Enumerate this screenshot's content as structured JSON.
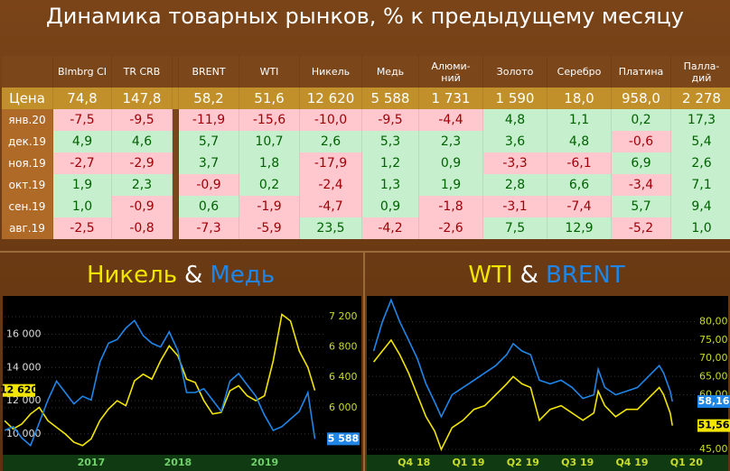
{
  "header": {
    "title": "Динамика товарных рынков, % к предыдущему месяцу"
  },
  "table": {
    "columns": [
      null,
      "Blmbrg CI",
      "TR CRB",
      "BRENT",
      "WTI",
      "Никель",
      "Медь",
      "Алюми-\nний",
      "Золото",
      "Серебро",
      "Платина",
      "Палла-\nдий"
    ],
    "rows": [
      [
        "Цена",
        "74,8",
        "147,8",
        "58,2",
        "51,6",
        "12 620",
        "5 588",
        "1 731",
        "1 590",
        "18,0",
        "958,0",
        "2 278"
      ],
      [
        "янв.20",
        "-7,5",
        "-9,5",
        "-11,9",
        "-15,6",
        "-10,0",
        "-9,5",
        "-4,4",
        "4,8",
        "1,1",
        "0,2",
        "17,3"
      ],
      [
        "дек.19",
        "4,9",
        "4,6",
        "5,7",
        "10,7",
        "2,6",
        "5,3",
        "2,3",
        "3,6",
        "4,8",
        "-0,6",
        "5,4"
      ],
      [
        "ноя.19",
        "-2,7",
        "-2,9",
        "3,7",
        "1,8",
        "-17,9",
        "1,2",
        "0,9",
        "-3,3",
        "-6,1",
        "6,9",
        "2,6"
      ],
      [
        "окт.19",
        "1,9",
        "2,3",
        "-0,9",
        "0,2",
        "-2,4",
        "1,3",
        "1,9",
        "2,8",
        "6,6",
        "-3,4",
        "7,1"
      ],
      [
        "сен.19",
        "1,0",
        "-0,9",
        "0,6",
        "-1,9",
        "-4,7",
        "0,9",
        "-1,8",
        "-3,1",
        "-7,4",
        "5,7",
        "9,4"
      ],
      [
        "авг.19",
        "-2,5",
        "-0,8",
        "-7,3",
        "-5,9",
        "23,5",
        "-4,2",
        "-2,6",
        "7,5",
        "12,9",
        "-5,2",
        "1,0"
      ]
    ]
  },
  "chart_data": [
    {
      "type": "line",
      "title_separator": "&",
      "grid": true,
      "yaxis_side": "left",
      "x": [
        2016.5,
        2016.6,
        2016.7,
        2016.8,
        2016.9,
        2017.0,
        2017.1,
        2017.2,
        2017.3,
        2017.4,
        2017.5,
        2017.6,
        2017.7,
        2017.8,
        2017.9,
        2018.0,
        2018.1,
        2018.2,
        2018.3,
        2018.4,
        2018.5,
        2018.6,
        2018.7,
        2018.8,
        2018.9,
        2019.0,
        2019.1,
        2019.2,
        2019.3,
        2019.4,
        2019.5,
        2019.6,
        2019.7,
        2019.8,
        2019.9,
        2020.0,
        2020.08
      ],
      "xlim": [
        2016.5,
        2020.2
      ],
      "xticks": [
        {
          "value": 2017.5,
          "label": "2017"
        },
        {
          "value": 2018.5,
          "label": "2018"
        },
        {
          "value": 2019.5,
          "label": "2019"
        }
      ],
      "ylim": [
        8800,
        18200
      ],
      "yticks": [
        {
          "value": 10000,
          "label": "10 000"
        },
        {
          "value": 12000,
          "label": "12 000"
        },
        {
          "value": 14000,
          "label": "14 000"
        },
        {
          "value": 16000,
          "label": "16 000"
        }
      ],
      "y2lim": [
        5390,
        7450
      ],
      "y2ticks": [
        {
          "value": 6000,
          "label": "6 000"
        },
        {
          "value": 6400,
          "label": "6 400"
        },
        {
          "value": 6800,
          "label": "6 800"
        },
        {
          "value": 7200,
          "label": "7 200"
        }
      ],
      "series": [
        {
          "name": "Никель",
          "color": "#f2e600",
          "end_label": "12 620",
          "values": [
            10800,
            10300,
            10600,
            11200,
            11600,
            10800,
            10400,
            10000,
            9500,
            9300,
            9700,
            10800,
            11500,
            12000,
            11700,
            13200,
            13600,
            13300,
            14400,
            15300,
            14700,
            13300,
            13100,
            12000,
            11200,
            11300,
            12600,
            12900,
            12300,
            12000,
            12300,
            14400,
            17200,
            16800,
            15000,
            14000,
            12620
          ]
        },
        {
          "name": "Медь",
          "color": "#1f86e8",
          "axis": "y2",
          "end_label": "5 588",
          "values": [
            5700,
            5750,
            5600,
            5500,
            5800,
            6100,
            6350,
            6200,
            6050,
            6150,
            6100,
            6600,
            6850,
            6900,
            7050,
            7150,
            6950,
            6850,
            6800,
            7000,
            6750,
            6200,
            6200,
            6250,
            6100,
            5950,
            6350,
            6450,
            6300,
            6150,
            5900,
            5700,
            5750,
            5850,
            5950,
            6200,
            5588
          ]
        }
      ]
    },
    {
      "type": "line",
      "title_separator": "&",
      "grid": true,
      "yaxis_side": "right",
      "x": [
        2018.69,
        2018.73,
        2018.77,
        2018.81,
        2018.85,
        2018.89,
        2018.93,
        2018.97,
        2019.0,
        2019.05,
        2019.1,
        2019.15,
        2019.2,
        2019.25,
        2019.3,
        2019.33,
        2019.37,
        2019.41,
        2019.45,
        2019.5,
        2019.55,
        2019.6,
        2019.65,
        2019.7,
        2019.72,
        2019.75,
        2019.8,
        2019.85,
        2019.9,
        2019.95,
        2020.0,
        2020.02,
        2020.05,
        2020.06
      ],
      "xlim": [
        2018.667,
        2020.167
      ],
      "xticks": [
        {
          "value": 2018.875,
          "label": "Q4 18"
        },
        {
          "value": 2019.125,
          "label": "Q1 19"
        },
        {
          "value": 2019.375,
          "label": "Q2 19"
        },
        {
          "value": 2019.625,
          "label": "Q3 19"
        },
        {
          "value": 2019.875,
          "label": "Q4 19"
        },
        {
          "value": 2020.125,
          "label": "Q1 20"
        }
      ],
      "ylim": [
        43.8,
        86.6
      ],
      "yticks": [
        {
          "value": 45,
          "label": "45,00"
        },
        {
          "value": 60,
          "label": "60,00"
        },
        {
          "value": 65,
          "label": "65,00"
        },
        {
          "value": 70,
          "label": "70,00"
        },
        {
          "value": 75,
          "label": "75,00"
        },
        {
          "value": 80,
          "label": "80,00"
        }
      ],
      "series": [
        {
          "name": "WTI",
          "color": "#f2e600",
          "end_label": "51,56",
          "values": [
            69,
            72,
            75,
            71,
            66,
            60,
            54,
            50,
            45,
            51,
            53,
            56,
            57,
            60,
            63,
            65,
            63,
            62,
            53,
            56,
            57,
            55,
            53,
            55,
            61,
            57,
            54,
            56,
            56,
            59,
            62,
            60,
            55,
            51.56
          ]
        },
        {
          "name": "BRENT",
          "color": "#1f86e8",
          "end_label": "58,16",
          "values": [
            72,
            80,
            86,
            80,
            75,
            70,
            63,
            58,
            54,
            60,
            62,
            64,
            66,
            68,
            71,
            74,
            72,
            71,
            64,
            63,
            64,
            62,
            59,
            60,
            67,
            62,
            60,
            61,
            62,
            65,
            68,
            66,
            61,
            58.16
          ]
        }
      ]
    }
  ]
}
